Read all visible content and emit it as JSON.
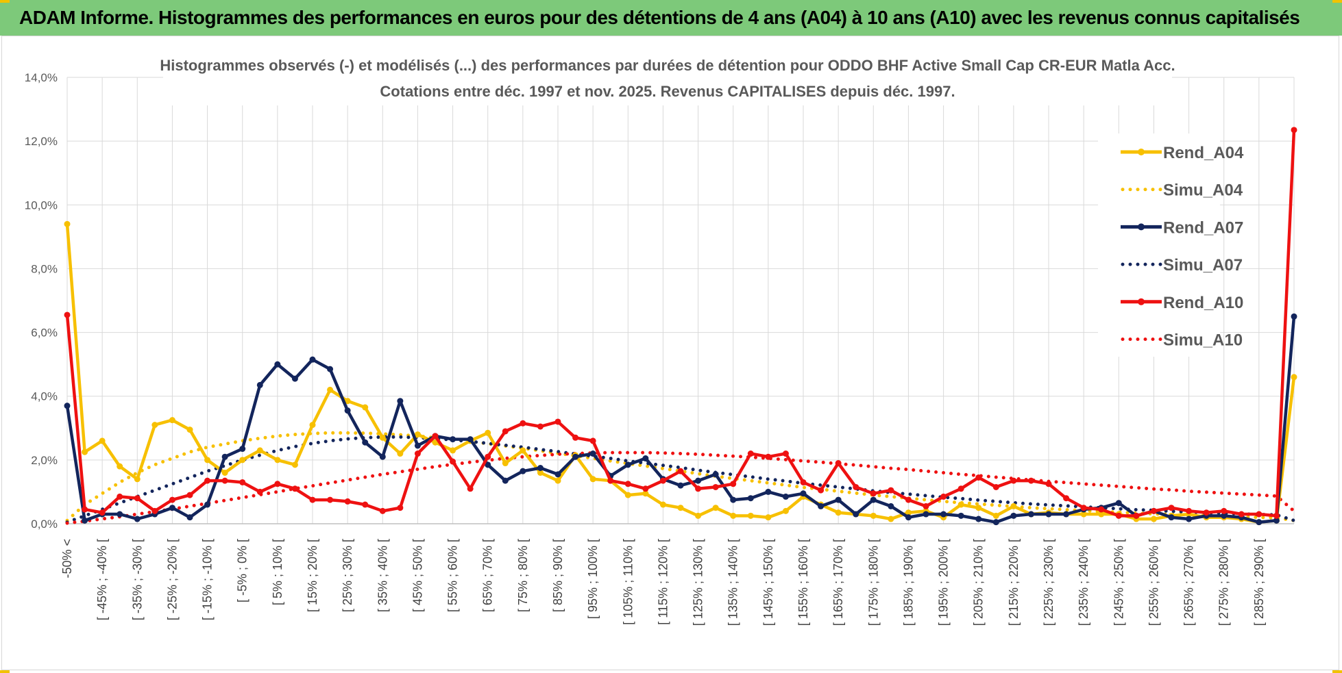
{
  "header": {
    "title": "ADAM Informe. Histogrammes des performances en euros pour des détentions de 4 ans (A04) à 10 ans (A10) avec les revenus connus capitalisés"
  },
  "colors": {
    "banner": "#7dc97a",
    "A04": "#f7c000",
    "A07": "#13255c",
    "A10": "#ee1111",
    "grid": "#d9d9d9",
    "text": "#595959"
  },
  "chart_data": {
    "type": "line",
    "title": "Histogrammes observés (-) et modélisés (...) des performances par durées de détention pour ODDO BHF Active Small Cap CR-EUR Matla Acc.",
    "subtitle": "Cotations entre déc. 1997 et nov. 2025. Revenus CAPITALISES depuis déc. 1997.",
    "xlabel": "",
    "ylabel": "",
    "ylim": [
      0,
      14
    ],
    "y_ticks": [
      "0,0%",
      "2,0%",
      "4,0%",
      "6,0%",
      "8,0%",
      "10,0%",
      "12,0%",
      "14,0%"
    ],
    "x_tick_labels": [
      "-50% <",
      "[ -45% ; -40% [",
      "[ -35% ; -30% [",
      "[ -25% ; -20% [",
      "[ -15% ; -10% [",
      "[ -5% ; 0% [",
      "[ 5% ; 10% [",
      "[ 15% ; 20% [",
      "[ 25% ; 30% [",
      "[ 35% ; 40% [",
      "[ 45% ; 50% [",
      "[ 55% ; 60% [",
      "[ 65% ; 70% [",
      "[ 75% ; 80% [",
      "[ 85% ; 90% [",
      "[ 95% ; 100% [",
      "[ 105% ; 110% [",
      "[ 115% ; 120% [",
      "[ 125% ; 130% [",
      "[ 135% ; 140% [",
      "[ 145% ; 150% [",
      "[ 155% ; 160% [",
      "[ 165% ; 170% [",
      "[ 175% ; 180% [",
      "[ 185% ; 190% [",
      "[ 195% ; 200% [",
      "[ 205% ; 210% [",
      "[ 215% ; 220% [",
      "[ 225% ; 230% [",
      "[ 235% ; 240% [",
      "[ 245% ; 250% [",
      "[ 255% ; 260% [",
      "[ 265% ; 270% [",
      "[ 275% ; 280% [",
      "[ 285% ; 290% ["
    ],
    "n_points": 71,
    "gridlines": true,
    "legend_position": "top-right",
    "series": [
      {
        "name": "Rend_A04",
        "style": "solid",
        "color": "#f7c000",
        "values": [
          9.4,
          2.25,
          2.6,
          1.8,
          1.4,
          3.1,
          3.25,
          2.95,
          2.0,
          1.6,
          2.0,
          2.3,
          2.0,
          1.85,
          3.1,
          4.2,
          3.85,
          3.65,
          2.7,
          2.2,
          2.8,
          2.55,
          2.3,
          2.6,
          2.85,
          1.9,
          2.3,
          1.6,
          1.35,
          2.15,
          1.4,
          1.35,
          0.9,
          0.95,
          0.6,
          0.5,
          0.25,
          0.5,
          0.25,
          0.25,
          0.2,
          0.4,
          0.85,
          0.6,
          0.35,
          0.3,
          0.25,
          0.15,
          0.35,
          0.4,
          0.2,
          0.6,
          0.5,
          0.25,
          0.55,
          0.3,
          0.35,
          0.3,
          0.3,
          0.3,
          0.3,
          0.15,
          0.15,
          0.25,
          0.3,
          0.2,
          0.2,
          0.15,
          0.05,
          0.1,
          4.6
        ]
      },
      {
        "name": "Simu_A04",
        "style": "dotted",
        "color": "#f7c000",
        "values": [
          0.1,
          0.6,
          0.95,
          1.3,
          1.6,
          1.85,
          2.05,
          2.25,
          2.4,
          2.5,
          2.6,
          2.68,
          2.75,
          2.8,
          2.83,
          2.85,
          2.85,
          2.84,
          2.82,
          2.79,
          2.75,
          2.7,
          2.64,
          2.58,
          2.51,
          2.44,
          2.37,
          2.29,
          2.21,
          2.13,
          2.05,
          1.97,
          1.89,
          1.81,
          1.73,
          1.65,
          1.57,
          1.49,
          1.42,
          1.35,
          1.28,
          1.21,
          1.14,
          1.08,
          1.02,
          0.96,
          0.9,
          0.85,
          0.8,
          0.75,
          0.7,
          0.66,
          0.62,
          0.58,
          0.54,
          0.5,
          0.47,
          0.44,
          0.41,
          0.38,
          0.36,
          0.33,
          0.31,
          0.29,
          0.27,
          0.25,
          0.23,
          0.22,
          0.2,
          0.19,
          0.1
        ]
      },
      {
        "name": "Rend_A07",
        "style": "solid",
        "color": "#13255c",
        "values": [
          3.7,
          0.1,
          0.3,
          0.3,
          0.15,
          0.3,
          0.5,
          0.2,
          0.6,
          2.1,
          2.35,
          4.35,
          5.0,
          4.55,
          5.15,
          4.85,
          3.55,
          2.55,
          2.1,
          3.85,
          2.45,
          2.75,
          2.65,
          2.65,
          1.85,
          1.35,
          1.65,
          1.75,
          1.55,
          2.1,
          2.2,
          1.5,
          1.85,
          2.05,
          1.4,
          1.2,
          1.35,
          1.55,
          0.75,
          0.8,
          1.0,
          0.85,
          0.95,
          0.55,
          0.75,
          0.3,
          0.75,
          0.55,
          0.2,
          0.3,
          0.3,
          0.25,
          0.15,
          0.05,
          0.25,
          0.3,
          0.3,
          0.3,
          0.45,
          0.5,
          0.65,
          0.25,
          0.4,
          0.2,
          0.15,
          0.25,
          0.25,
          0.2,
          0.05,
          0.1,
          6.5
        ]
      },
      {
        "name": "Simu_A07",
        "style": "dotted",
        "color": "#13255c",
        "values": [
          0.05,
          0.25,
          0.45,
          0.65,
          0.85,
          1.05,
          1.25,
          1.45,
          1.65,
          1.82,
          2.0,
          2.15,
          2.3,
          2.42,
          2.52,
          2.6,
          2.66,
          2.7,
          2.72,
          2.72,
          2.7,
          2.67,
          2.63,
          2.58,
          2.52,
          2.46,
          2.4,
          2.33,
          2.26,
          2.19,
          2.12,
          2.05,
          1.97,
          1.9,
          1.83,
          1.76,
          1.68,
          1.61,
          1.54,
          1.47,
          1.4,
          1.34,
          1.27,
          1.21,
          1.15,
          1.09,
          1.03,
          0.98,
          0.93,
          0.88,
          0.83,
          0.79,
          0.74,
          0.7,
          0.66,
          0.62,
          0.59,
          0.56,
          0.53,
          0.5,
          0.47,
          0.44,
          0.42,
          0.39,
          0.37,
          0.35,
          0.33,
          0.31,
          0.29,
          0.28,
          0.1
        ]
      },
      {
        "name": "Rend_A10",
        "style": "solid",
        "color": "#ee1111",
        "values": [
          6.55,
          0.45,
          0.35,
          0.85,
          0.8,
          0.4,
          0.75,
          0.9,
          1.35,
          1.35,
          1.3,
          1.0,
          1.25,
          1.1,
          0.75,
          0.75,
          0.7,
          0.6,
          0.4,
          0.5,
          2.2,
          2.75,
          1.95,
          1.1,
          2.1,
          2.9,
          3.15,
          3.05,
          3.2,
          2.7,
          2.6,
          1.35,
          1.25,
          1.1,
          1.35,
          1.65,
          1.1,
          1.15,
          1.25,
          2.2,
          2.1,
          2.2,
          1.3,
          1.05,
          1.9,
          1.15,
          0.95,
          1.05,
          0.75,
          0.55,
          0.85,
          1.1,
          1.45,
          1.15,
          1.35,
          1.35,
          1.25,
          0.8,
          0.5,
          0.45,
          0.25,
          0.25,
          0.4,
          0.5,
          0.4,
          0.35,
          0.4,
          0.3,
          0.3,
          0.25,
          12.35
        ]
      },
      {
        "name": "Simu_A10",
        "style": "dotted",
        "color": "#ee1111",
        "values": [
          0.02,
          0.08,
          0.15,
          0.22,
          0.3,
          0.38,
          0.46,
          0.55,
          0.64,
          0.73,
          0.82,
          0.91,
          1.0,
          1.1,
          1.19,
          1.28,
          1.37,
          1.46,
          1.55,
          1.63,
          1.71,
          1.79,
          1.86,
          1.93,
          1.99,
          2.05,
          2.1,
          2.14,
          2.18,
          2.2,
          2.22,
          2.23,
          2.23,
          2.23,
          2.22,
          2.2,
          2.18,
          2.15,
          2.12,
          2.09,
          2.05,
          2.01,
          1.97,
          1.93,
          1.88,
          1.84,
          1.79,
          1.74,
          1.7,
          1.65,
          1.6,
          1.55,
          1.51,
          1.46,
          1.42,
          1.37,
          1.33,
          1.29,
          1.25,
          1.21,
          1.17,
          1.13,
          1.09,
          1.06,
          1.02,
          0.99,
          0.96,
          0.93,
          0.9,
          0.87,
          0.4
        ]
      }
    ]
  }
}
